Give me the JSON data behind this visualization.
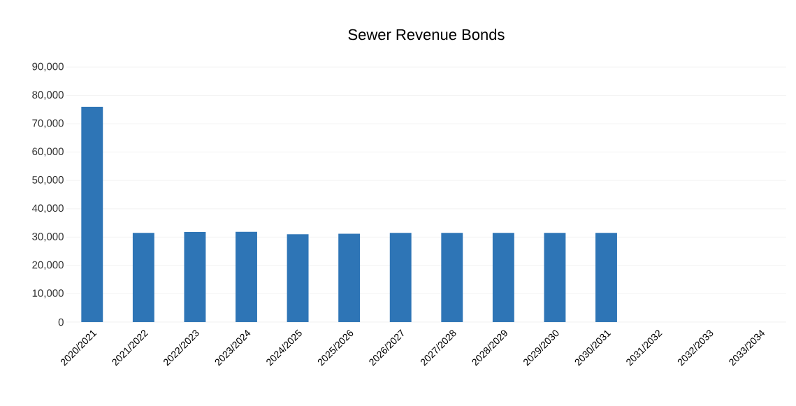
{
  "chart_data": {
    "type": "bar",
    "title": "Sewer Revenue Bonds",
    "categories": [
      "2020/2021",
      "2021/2022",
      "2022/2023",
      "2023/2024",
      "2024/2025",
      "2025/2026",
      "2026/2027",
      "2027/2028",
      "2028/2029",
      "2029/2030",
      "2030/2031",
      "2031/2032",
      "2032/2033",
      "2033/2034"
    ],
    "values": [
      76000,
      31500,
      31800,
      31900,
      31000,
      31200,
      31500,
      31500,
      31500,
      31500,
      31500,
      null,
      null,
      null
    ],
    "color": "#2e75b6",
    "ylim": [
      0,
      90000
    ],
    "yticks": [
      {
        "value": 0,
        "label": "0"
      },
      {
        "value": 10000,
        "label": "10,000"
      },
      {
        "value": 20000,
        "label": "20,000"
      },
      {
        "value": 30000,
        "label": "30,000"
      },
      {
        "value": 40000,
        "label": "40,000"
      },
      {
        "value": 50000,
        "label": "50,000"
      },
      {
        "value": 60000,
        "label": "60,000"
      },
      {
        "value": 70000,
        "label": "70,000"
      },
      {
        "value": 80000,
        "label": "80,000"
      },
      {
        "value": 90000,
        "label": "90,000"
      }
    ],
    "grid": "y"
  }
}
